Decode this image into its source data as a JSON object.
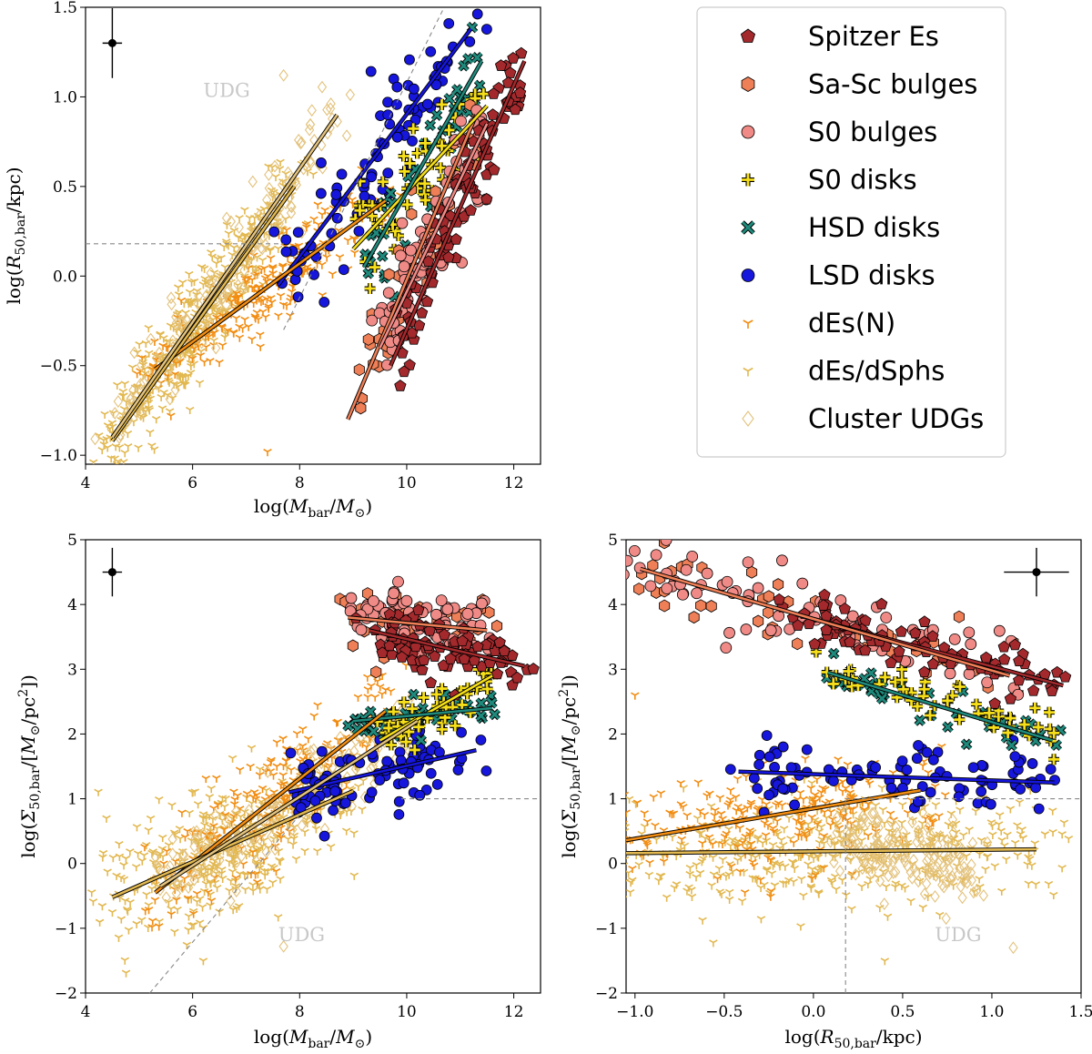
{
  "colors": {
    "spitzer": "#a3292c",
    "sasc": "#ef7f56",
    "s0bulge": "#f08a86",
    "s0disk": "#f6df1a",
    "hsd": "#1f8a7c",
    "lsd": "#1616dd",
    "den": "#f28d12",
    "dsph": "#e2b850",
    "udg": "#e3c27c",
    "refline": "#888888"
  },
  "legend": [
    {
      "key": "spitzer",
      "label": "Spitzer Es",
      "marker": "pentagon"
    },
    {
      "key": "sasc",
      "label": "Sa-Sc bulges",
      "marker": "hexagon"
    },
    {
      "key": "s0bulge",
      "label": "S0 bulges",
      "marker": "circle"
    },
    {
      "key": "s0disk",
      "label": "S0 disks",
      "marker": "plus"
    },
    {
      "key": "hsd",
      "label": "HSD disks",
      "marker": "x"
    },
    {
      "key": "lsd",
      "label": "LSD disks",
      "marker": "circle"
    },
    {
      "key": "den",
      "label": "dEs(N)",
      "marker": "tri"
    },
    {
      "key": "dsph",
      "label": "dEs/dSphs",
      "marker": "tri"
    },
    {
      "key": "udg",
      "label": "Cluster UDGs",
      "marker": "diamond"
    }
  ],
  "udg_label": "UDG",
  "chart_data": [
    {
      "id": "mass-size",
      "type": "scatter",
      "xlabel": "log(M_bar/M_sun)",
      "ylabel": "log(R_50,bar/kpc)",
      "xlim": [
        4,
        12.5
      ],
      "ylim": [
        -1.05,
        1.5
      ],
      "xticks": [
        4,
        6,
        8,
        10,
        12
      ],
      "yticks": [
        -1.0,
        -0.5,
        0.0,
        0.5,
        1.0,
        1.5
      ],
      "udg_label_at": [
        6.2,
        1.0
      ],
      "error_bar": {
        "x": 4.5,
        "y": 1.3,
        "dx": 0.13,
        "dy": 0.13
      },
      "reference_lines": [
        {
          "x": [
            4,
            7.7
          ],
          "y": [
            0.18,
            0.18
          ]
        },
        {
          "x": [
            7.7,
            10.7
          ],
          "y": [
            -0.3,
            1.5
          ]
        }
      ],
      "fits": [
        {
          "key": "spitzer",
          "x": [
            9.7,
            12.2
          ],
          "y": [
            -0.5,
            1.2
          ]
        },
        {
          "key": "sasc",
          "x": [
            8.9,
            11.3
          ],
          "y": [
            -0.8,
            0.9
          ]
        },
        {
          "key": "s0bulge",
          "x": [
            9.5,
            11.5
          ],
          "y": [
            -0.4,
            0.85
          ]
        },
        {
          "key": "s0disk",
          "x": [
            9.0,
            11.5
          ],
          "y": [
            0.15,
            0.95
          ]
        },
        {
          "key": "hsd",
          "x": [
            9.2,
            11.4
          ],
          "y": [
            0.05,
            1.2
          ]
        },
        {
          "key": "lsd",
          "x": [
            7.6,
            11.2
          ],
          "y": [
            -0.05,
            1.38
          ]
        },
        {
          "key": "den",
          "x": [
            5.3,
            9.6
          ],
          "y": [
            -0.52,
            0.42
          ]
        },
        {
          "key": "dsph",
          "x": [
            4.5,
            7.9
          ],
          "y": [
            -0.92,
            0.5
          ]
        },
        {
          "key": "udg",
          "x": [
            4.5,
            8.7
          ],
          "y": [
            -0.9,
            0.9
          ]
        }
      ],
      "highlight_points": [
        {
          "key": "udg",
          "x": [
            7.7
          ],
          "y": [
            1.12
          ]
        },
        {
          "key": "den",
          "x": [
            7.4
          ],
          "y": [
            -0.98
          ]
        }
      ]
    },
    {
      "id": "mass-density",
      "type": "scatter",
      "xlabel": "log(M_bar/M_sun)",
      "ylabel": "log(Sigma_50,bar/[M_sun/pc^2])",
      "xlim": [
        4,
        12.5
      ],
      "ylim": [
        -2,
        5
      ],
      "xticks": [
        4,
        6,
        8,
        10,
        12
      ],
      "yticks": [
        -2,
        -1,
        0,
        1,
        2,
        3,
        4,
        5
      ],
      "udg_label_at": [
        7.6,
        -1.2
      ],
      "error_bar": {
        "x": 4.5,
        "y": 4.5,
        "dx": 0.13,
        "dy": 0.25
      },
      "reference_lines": [
        {
          "x": [
            9.9,
            12.5
          ],
          "y": [
            1.0,
            1.0
          ]
        },
        {
          "x": [
            5.2,
            8.0
          ],
          "y": [
            -2.0,
            0.75
          ]
        }
      ],
      "fits": [
        {
          "key": "spitzer",
          "x": [
            9.3,
            12.2
          ],
          "y": [
            3.6,
            3.05
          ]
        },
        {
          "key": "sasc",
          "x": [
            8.9,
            11.5
          ],
          "y": [
            3.8,
            3.6
          ]
        },
        {
          "key": "s0disk",
          "x": [
            9.5,
            11.6
          ],
          "y": [
            1.9,
            2.9
          ]
        },
        {
          "key": "hsd",
          "x": [
            9.0,
            11.6
          ],
          "y": [
            2.2,
            2.4
          ]
        },
        {
          "key": "lsd",
          "x": [
            7.8,
            11.3
          ],
          "y": [
            1.1,
            1.75
          ]
        },
        {
          "key": "den",
          "x": [
            5.3,
            9.6
          ],
          "y": [
            -0.45,
            2.35
          ]
        },
        {
          "key": "dsph",
          "x": [
            4.5,
            9.0
          ],
          "y": [
            -0.52,
            1.12
          ]
        },
        {
          "key": "udg",
          "x": [
            5.4,
            10.2
          ],
          "y": [
            -0.35,
            2.2
          ]
        }
      ],
      "highlight_points": [
        {
          "key": "udg",
          "x": [
            7.7
          ],
          "y": [
            -1.28
          ]
        },
        {
          "key": "dsph",
          "x": [
            6.2
          ],
          "y": [
            -1.5
          ]
        }
      ]
    },
    {
      "id": "size-density",
      "type": "scatter",
      "xlabel": "log(R_50,bar/kpc)",
      "ylabel": "log(Sigma_50,bar/[M_sun/pc^2])",
      "xlim": [
        -1.05,
        1.5
      ],
      "ylim": [
        -2,
        5
      ],
      "xticks": [
        -1.0,
        -0.5,
        0.0,
        0.5,
        1.0,
        1.5
      ],
      "yticks": [
        -2,
        -1,
        0,
        1,
        2,
        3,
        4,
        5
      ],
      "udg_label_at": [
        0.68,
        -1.2
      ],
      "error_bar": {
        "x": 1.25,
        "y": 4.5,
        "dx": 0.13,
        "dy": 0.25
      },
      "reference_lines": [
        {
          "x": [
            0.18,
            1.5
          ],
          "y": [
            1.0,
            1.0
          ]
        },
        {
          "x": [
            0.18,
            0.18
          ],
          "y": [
            -2.0,
            1.0
          ]
        }
      ],
      "fits": [
        {
          "key": "spitzer",
          "x": [
            -0.1,
            1.4
          ],
          "y": [
            3.85,
            2.75
          ]
        },
        {
          "key": "sasc",
          "x": [
            -0.97,
            1.1
          ],
          "y": [
            4.55,
            2.9
          ]
        },
        {
          "key": "hsd",
          "x": [
            0.08,
            1.34
          ],
          "y": [
            2.95,
            1.9
          ]
        },
        {
          "key": "lsd",
          "x": [
            -0.42,
            1.35
          ],
          "y": [
            1.42,
            1.25
          ]
        },
        {
          "key": "den",
          "x": [
            -1.05,
            0.6
          ],
          "y": [
            0.36,
            1.13
          ]
        },
        {
          "key": "dsph",
          "x": [
            -1.05,
            1.25
          ],
          "y": [
            0.16,
            0.22
          ]
        }
      ],
      "highlight_points": [
        {
          "key": "udg",
          "x": [
            1.12
          ],
          "y": [
            -1.3
          ]
        },
        {
          "key": "den",
          "x": [
            -1.0
          ],
          "y": [
            2.6
          ]
        },
        {
          "key": "dsph",
          "x": [
            0.4
          ],
          "y": [
            -1.5
          ]
        }
      ]
    }
  ]
}
